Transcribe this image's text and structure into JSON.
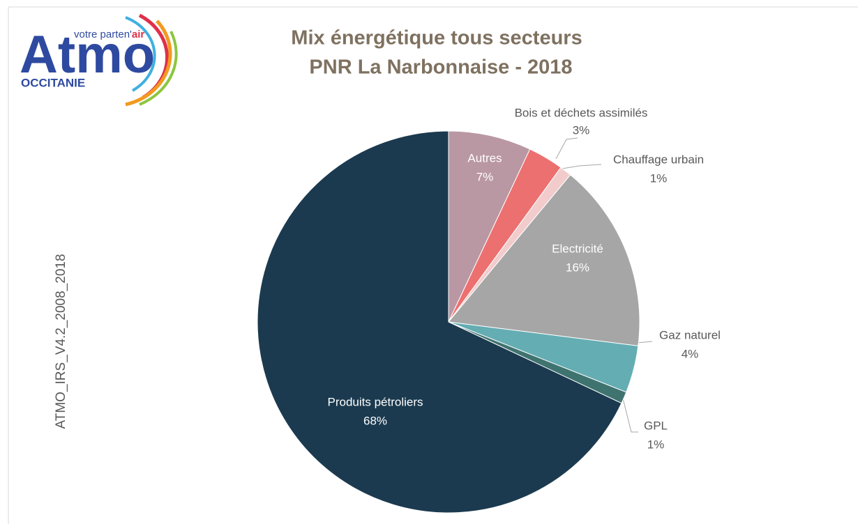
{
  "chart_data": {
    "type": "pie",
    "title": "Mix énergétique tous secteurs",
    "subtitle": "PNR La Narbonnaise  - 2018",
    "categories": [
      "Autres",
      "Bois et déchets assimilés",
      "Chauffage urbain",
      "Electricité",
      "Gaz naturel",
      "GPL",
      "Produits pétroliers"
    ],
    "values": [
      7,
      3,
      1,
      16,
      4,
      1,
      68
    ],
    "value_labels": [
      "7%",
      "3%",
      "1%",
      "16%",
      "4%",
      "1%",
      "68%"
    ],
    "colors": [
      "#b997a3",
      "#ec7070",
      "#f2cccc",
      "#a6a6a6",
      "#64adb3",
      "#3f7370",
      "#1b3a4f"
    ],
    "annotation": "ATMO_IRS_V4.2_2008_2018"
  },
  "logo": {
    "brand": "Atmo",
    "tagline": "votre parten'",
    "tagline_bold": "air",
    "region": "OCCITANIE"
  }
}
